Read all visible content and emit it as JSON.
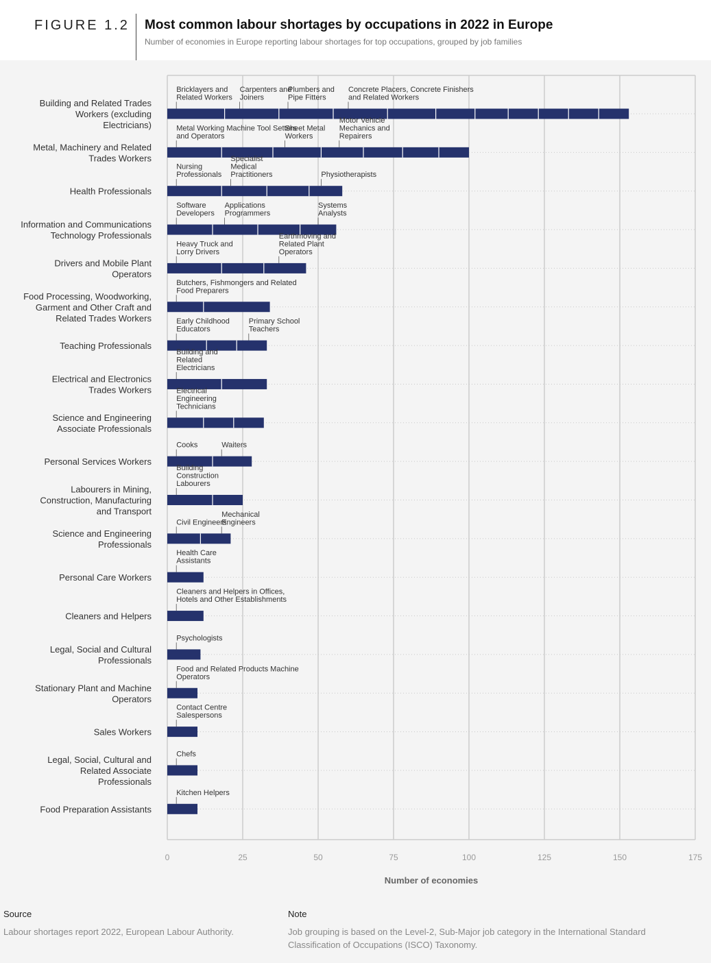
{
  "header": {
    "figure_label": "FIGURE 1.2",
    "title": "Most common labour shortages by occupations in 2022 in Europe",
    "subtitle": "Number of economies in Europe reporting labour shortages for top occupations, grouped by job families"
  },
  "footer": {
    "source_heading": "Source",
    "source_text": "Labour shortages report 2022, European Labour Authority.",
    "note_heading": "Note",
    "note_text": "Job grouping is based on the Level-2, Sub-Major job category in the  International Standard Classification of Occupations (ISCO) Taxonomy."
  },
  "colors": {
    "bar": "#25326c",
    "grid": "#cccccc",
    "divider": "#ffffff",
    "background": "#f4f4f4"
  },
  "chart_data": {
    "type": "bar",
    "orientation": "horizontal",
    "stacked": true,
    "xlabel": "Number of economies",
    "xlim": [
      0,
      175
    ],
    "xticks": [
      0,
      25,
      50,
      75,
      100,
      125,
      150,
      175
    ],
    "grid": true,
    "categories": [
      {
        "label": "Building and Related Trades Workers (excluding Electricians)",
        "total": 153,
        "segments": [
          19,
          18,
          18,
          18,
          16,
          13,
          11,
          10,
          10,
          10,
          10
        ],
        "annotations": [
          {
            "text": "Bricklayers and Related Workers",
            "x": 3
          },
          {
            "text": "Carpenters and Joiners",
            "x": 24
          },
          {
            "text": "Plumbers and Pipe Fitters",
            "x": 40
          },
          {
            "text": "Concrete Placers, Concrete Finishers and Related Workers",
            "x": 60
          }
        ]
      },
      {
        "label": "Metal, Machinery and Related Trades Workers",
        "total": 100,
        "segments": [
          18,
          17,
          16,
          14,
          13,
          12,
          10
        ],
        "annotations": [
          {
            "text": "Metal Working Machine Tool Setters and Operators",
            "x": 3
          },
          {
            "text": "Sheet Metal Workers",
            "x": 39
          },
          {
            "text": "Motor Vehicle Mechanics and Repairers",
            "x": 57
          }
        ]
      },
      {
        "label": "Health Professionals",
        "total": 58,
        "segments": [
          18,
          15,
          14,
          11
        ],
        "annotations": [
          {
            "text": "Nursing Professionals",
            "x": 3
          },
          {
            "text": "Specialist Medical Practitioners",
            "x": 21
          },
          {
            "text": "Physiotherapists",
            "x": 51
          }
        ]
      },
      {
        "label": "Information and Communications Technology Professionals",
        "total": 56,
        "segments": [
          15,
          15,
          14,
          12
        ],
        "annotations": [
          {
            "text": "Software Developers",
            "x": 3
          },
          {
            "text": "Applications Programmers",
            "x": 19
          },
          {
            "text": "Systems Analysts",
            "x": 50
          }
        ]
      },
      {
        "label": "Drivers and Mobile Plant Operators",
        "total": 46,
        "segments": [
          18,
          14,
          14
        ],
        "annotations": [
          {
            "text": "Heavy Truck and Lorry Drivers",
            "x": 3
          },
          {
            "text": "Earthmoving and Related Plant Operators",
            "x": 37
          }
        ]
      },
      {
        "label": "Food Processing, Woodworking, Garment and Other Craft and Related Trades Workers",
        "total": 34,
        "segments": [
          12,
          22
        ],
        "annotations": [
          {
            "text": "Butchers, Fishmongers and Related Food Preparers",
            "x": 3
          }
        ]
      },
      {
        "label": "Teaching Professionals",
        "total": 33,
        "segments": [
          13,
          10,
          10
        ],
        "annotations": [
          {
            "text": "Early Childhood Educators",
            "x": 3
          },
          {
            "text": "Primary School Teachers",
            "x": 27
          }
        ]
      },
      {
        "label": "Electrical and Electronics Trades Workers",
        "total": 33,
        "segments": [
          18,
          15
        ],
        "annotations": [
          {
            "text": "Building and Related Electricians",
            "x": 3
          }
        ]
      },
      {
        "label": "Science and Engineering Associate Professionals",
        "total": 32,
        "segments": [
          12,
          10,
          10
        ],
        "annotations": [
          {
            "text": "Electrical Engineering Technicians",
            "x": 3
          }
        ]
      },
      {
        "label": "Personal Services Workers",
        "total": 28,
        "segments": [
          15,
          13
        ],
        "annotations": [
          {
            "text": "Cooks",
            "x": 3
          },
          {
            "text": "Waiters",
            "x": 18
          }
        ]
      },
      {
        "label": "Labourers in Mining, Construction, Manufacturing and Transport",
        "total": 25,
        "segments": [
          15,
          10
        ],
        "annotations": [
          {
            "text": "Building Construction Labourers",
            "x": 3
          }
        ]
      },
      {
        "label": "Science and Engineering Professionals",
        "total": 21,
        "segments": [
          11,
          10
        ],
        "annotations": [
          {
            "text": "Civil Engineers",
            "x": 3
          },
          {
            "text": "Mechanical Engineers",
            "x": 18
          }
        ]
      },
      {
        "label": "Personal Care Workers",
        "total": 12,
        "segments": [
          12
        ],
        "annotations": [
          {
            "text": "Health Care Assistants",
            "x": 3
          }
        ]
      },
      {
        "label": "Cleaners and Helpers",
        "total": 12,
        "segments": [
          12
        ],
        "annotations": [
          {
            "text": "Cleaners and Helpers in Offices, Hotels and Other Establishments",
            "x": 3
          }
        ]
      },
      {
        "label": "Legal, Social and Cultural Professionals",
        "total": 11,
        "segments": [
          11
        ],
        "annotations": [
          {
            "text": "Psychologists",
            "x": 3
          }
        ]
      },
      {
        "label": "Stationary Plant and Machine Operators",
        "total": 10,
        "segments": [
          10
        ],
        "annotations": [
          {
            "text": "Food and Related Products Machine Operators",
            "x": 3
          }
        ]
      },
      {
        "label": "Sales Workers",
        "total": 10,
        "segments": [
          10
        ],
        "annotations": [
          {
            "text": "Contact Centre Salespersons",
            "x": 3
          }
        ]
      },
      {
        "label": "Legal, Social, Cultural and Related Associate Professionals",
        "total": 10,
        "segments": [
          10
        ],
        "annotations": [
          {
            "text": "Chefs",
            "x": 3
          }
        ]
      },
      {
        "label": "Food Preparation Assistants",
        "total": 10,
        "segments": [
          10
        ],
        "annotations": [
          {
            "text": "Kitchen Helpers",
            "x": 3
          }
        ]
      }
    ]
  }
}
